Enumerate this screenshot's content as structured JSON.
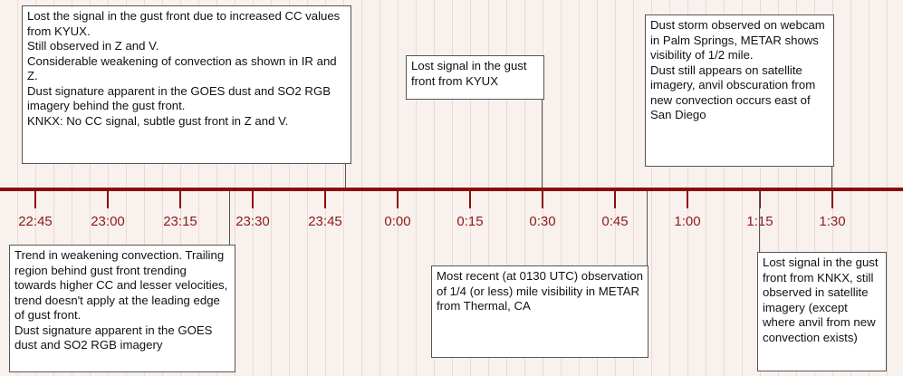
{
  "timeline": {
    "ticks": [
      "22:45",
      "23:00",
      "23:15",
      "23:30",
      "23:45",
      "0:00",
      "0:15",
      "0:30",
      "0:45",
      "1:00",
      "1:15",
      "1:30"
    ],
    "colors": {
      "axis": "#8b0d0d",
      "tick_label": "#8b1a1a",
      "background": "#f9f1ee"
    }
  },
  "annotations": [
    {
      "time": "23:53",
      "position": "above",
      "text": "Lost the signal in the gust front due to increased CC values from KYUX.\nStill observed in Z and V.\nConsiderable weakening of convection as shown in IR and Z.\nDust signature apparent in the GOES dust and SO2 RGB imagery behind the gust front.\nKNKX: No CC signal, subtle gust front in Z and V."
    },
    {
      "time": "0:30",
      "position": "above",
      "text": "Lost signal in the gust front from KYUX"
    },
    {
      "time": "1:30",
      "position": "above",
      "text": "Dust storm observed on webcam in Palm Springs, METAR shows visibility of 1/2 mile.\nDust still appears on satellite imagery, anvil obscuration from new convection occurs east of San Diego"
    },
    {
      "time": "23:26",
      "position": "below",
      "text": "Trend in weakening convection. Trailing region behind gust front trending towards higher CC and lesser velocities, trend doesn't apply at the leading edge of gust front.\nDust signature apparent in the GOES dust and SO2 RGB imagery"
    },
    {
      "time": "0:51",
      "position": "below",
      "text": "Most recent (at 0130 UTC) observation of 1/4 (or less) mile visibility in METAR from Thermal, CA"
    },
    {
      "time": "1:15",
      "position": "below",
      "text": "Lost signal in the gust front from KNKX, still observed in satellite imagery (except where anvil from new convection exists)"
    }
  ]
}
